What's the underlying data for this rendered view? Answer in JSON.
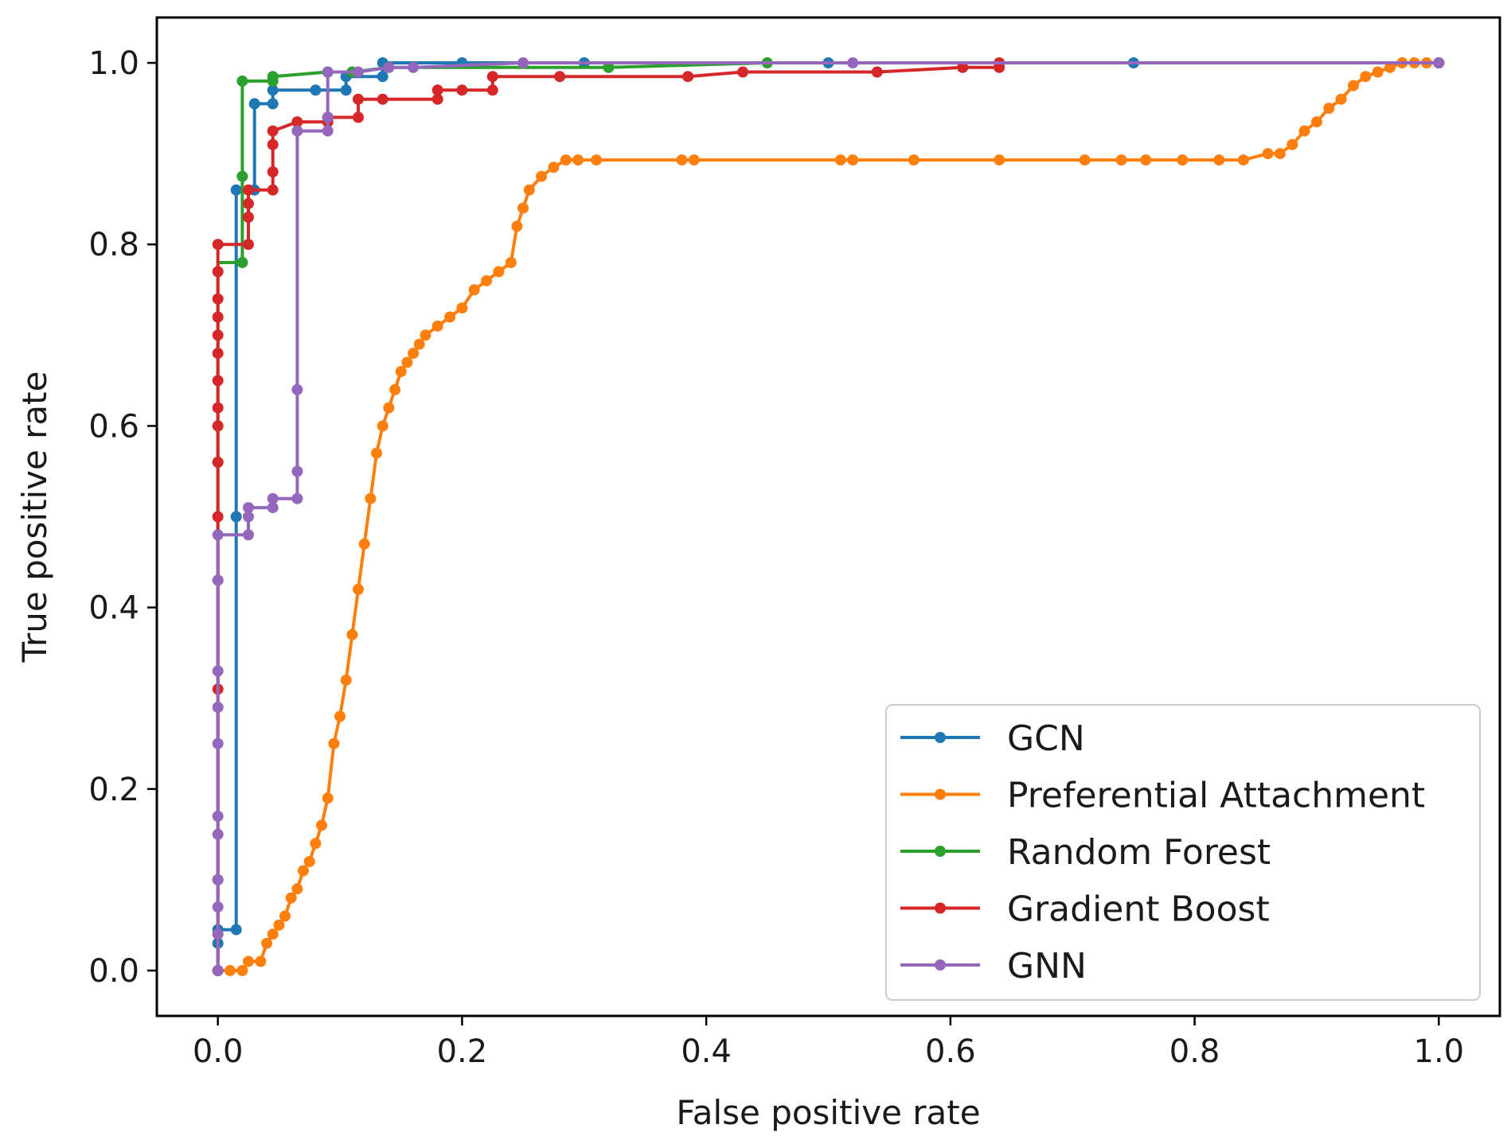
{
  "chart_data": {
    "type": "line",
    "title": "",
    "xlabel": "False positive rate",
    "ylabel": "True positive rate",
    "xlim": [
      -0.05,
      1.05
    ],
    "ylim": [
      -0.05,
      1.05
    ],
    "xticks": [
      0.0,
      0.2,
      0.4,
      0.6,
      0.8,
      1.0
    ],
    "yticks": [
      0.0,
      0.2,
      0.4,
      0.6,
      0.8,
      1.0
    ],
    "xtick_labels": [
      "0.0",
      "0.2",
      "0.4",
      "0.6",
      "0.8",
      "1.0"
    ],
    "ytick_labels": [
      "0.0",
      "0.2",
      "0.4",
      "0.6",
      "0.8",
      "1.0"
    ],
    "grid": false,
    "legend_position": "lower-right",
    "series": [
      {
        "name": "GCN",
        "color": "#1f77b4",
        "x": [
          0,
          0,
          0,
          0.015,
          0.015,
          0.015,
          0.03,
          0.03,
          0.045,
          0.045,
          0.08,
          0.105,
          0.105,
          0.135,
          0.135,
          0.2,
          0.3,
          0.5,
          0.75,
          1.0
        ],
        "y": [
          0,
          0.03,
          0.045,
          0.045,
          0.5,
          0.86,
          0.86,
          0.955,
          0.955,
          0.97,
          0.97,
          0.97,
          0.985,
          0.985,
          1.0,
          1.0,
          1.0,
          1.0,
          1.0,
          1.0
        ]
      },
      {
        "name": "Preferential Attachment",
        "color": "#ff7f0e",
        "x": [
          0,
          0.01,
          0.02,
          0.025,
          0.035,
          0.04,
          0.045,
          0.05,
          0.055,
          0.06,
          0.065,
          0.07,
          0.075,
          0.08,
          0.085,
          0.09,
          0.095,
          0.1,
          0.105,
          0.11,
          0.115,
          0.12,
          0.125,
          0.13,
          0.135,
          0.14,
          0.145,
          0.15,
          0.155,
          0.16,
          0.165,
          0.17,
          0.18,
          0.19,
          0.2,
          0.21,
          0.22,
          0.23,
          0.24,
          0.245,
          0.25,
          0.255,
          0.265,
          0.275,
          0.285,
          0.295,
          0.31,
          0.38,
          0.39,
          0.51,
          0.52,
          0.57,
          0.64,
          0.71,
          0.74,
          0.76,
          0.79,
          0.82,
          0.84,
          0.86,
          0.87,
          0.88,
          0.89,
          0.9,
          0.91,
          0.92,
          0.93,
          0.94,
          0.95,
          0.96,
          0.97,
          0.98,
          0.99,
          1.0
        ],
        "y": [
          0,
          0,
          0.0,
          0.01,
          0.01,
          0.03,
          0.04,
          0.05,
          0.06,
          0.08,
          0.09,
          0.11,
          0.12,
          0.14,
          0.16,
          0.19,
          0.25,
          0.28,
          0.32,
          0.37,
          0.42,
          0.47,
          0.52,
          0.57,
          0.6,
          0.62,
          0.64,
          0.66,
          0.67,
          0.68,
          0.69,
          0.7,
          0.71,
          0.72,
          0.73,
          0.75,
          0.76,
          0.77,
          0.78,
          0.82,
          0.84,
          0.86,
          0.875,
          0.885,
          0.893,
          0.893,
          0.893,
          0.893,
          0.893,
          0.893,
          0.893,
          0.893,
          0.893,
          0.893,
          0.893,
          0.893,
          0.893,
          0.893,
          0.893,
          0.9,
          0.9,
          0.91,
          0.925,
          0.935,
          0.95,
          0.96,
          0.975,
          0.985,
          0.99,
          0.995,
          1.0,
          1.0,
          1.0,
          1.0
        ]
      },
      {
        "name": "Random Forest",
        "color": "#2ca02c",
        "x": [
          0,
          0,
          0,
          0,
          0,
          0.02,
          0.02,
          0.02,
          0.02,
          0.02,
          0.045,
          0.045,
          0.09,
          0.11,
          0.14,
          0.32,
          0.45,
          0.7,
          1.0
        ],
        "y": [
          0,
          0.43,
          0.56,
          0.7,
          0.78,
          0.78,
          0.86,
          0.87,
          0.88,
          0.98,
          0.98,
          0.985,
          0.99,
          0.99,
          0.995,
          0.995,
          1.0,
          1.0,
          1.0
        ],
        "marker_x": [
          0,
          0,
          0.02,
          0.02,
          0.02,
          0.045,
          0.045,
          0.09,
          0.11,
          0.14,
          0.32,
          0.45,
          1.0
        ],
        "marker_y": [
          0.43,
          0.56,
          0.78,
          0.875,
          0.98,
          0.98,
          0.985,
          0.99,
          0.99,
          0.995,
          0.995,
          1.0,
          1.0
        ]
      },
      {
        "name": "Gradient Boost",
        "color": "#d62728",
        "x": [
          0,
          0,
          0,
          0,
          0,
          0,
          0,
          0,
          0,
          0,
          0,
          0,
          0,
          0,
          0.025,
          0.025,
          0.025,
          0.025,
          0.045,
          0.045,
          0.045,
          0.045,
          0.065,
          0.09,
          0.09,
          0.115,
          0.115,
          0.135,
          0.18,
          0.18,
          0.2,
          0.225,
          0.225,
          0.28,
          0.385,
          0.43,
          0.54,
          0.61,
          0.64,
          0.64,
          1.0
        ],
        "y": [
          0,
          0.1,
          0.31,
          0.5,
          0.56,
          0.6,
          0.62,
          0.65,
          0.68,
          0.7,
          0.72,
          0.74,
          0.77,
          0.8,
          0.8,
          0.83,
          0.845,
          0.86,
          0.86,
          0.88,
          0.91,
          0.925,
          0.935,
          0.935,
          0.94,
          0.94,
          0.96,
          0.96,
          0.96,
          0.97,
          0.97,
          0.97,
          0.985,
          0.985,
          0.985,
          0.99,
          0.99,
          0.995,
          0.995,
          1.0,
          1.0
        ]
      },
      {
        "name": "GNN",
        "color": "#9467bd",
        "x": [
          0,
          0,
          0,
          0,
          0,
          0,
          0,
          0,
          0,
          0,
          0,
          0.025,
          0.025,
          0.025,
          0.045,
          0.045,
          0.065,
          0.065,
          0.065,
          0.065,
          0.09,
          0.09,
          0.09,
          0.115,
          0.14,
          0.16,
          0.25,
          0.52,
          1.0
        ],
        "y": [
          0,
          0.04,
          0.07,
          0.1,
          0.15,
          0.17,
          0.25,
          0.29,
          0.33,
          0.43,
          0.48,
          0.48,
          0.5,
          0.51,
          0.51,
          0.52,
          0.52,
          0.55,
          0.64,
          0.925,
          0.925,
          0.94,
          0.99,
          0.99,
          0.995,
          0.995,
          1.0,
          1.0,
          1.0
        ]
      }
    ]
  }
}
